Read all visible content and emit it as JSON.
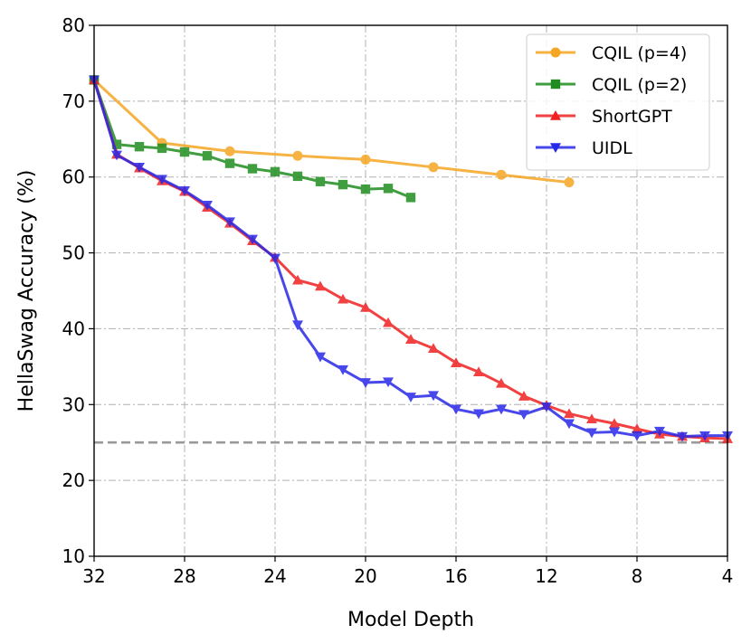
{
  "chart_data": {
    "type": "line",
    "xlabel": "Model Depth",
    "ylabel": "HellaSwag Accuracy (%)",
    "xlim": [
      32,
      4
    ],
    "ylim": [
      10,
      80
    ],
    "xticks": [
      32,
      28,
      24,
      20,
      16,
      12,
      8,
      4
    ],
    "yticks": [
      10,
      20,
      30,
      40,
      50,
      60,
      70,
      80
    ],
    "grid": true,
    "legend_position": "top-right",
    "baseline": {
      "value": 25,
      "color": "#999999",
      "style": "dashed"
    },
    "series": [
      {
        "name": "CQIL (p=4)",
        "color": "#f5a623",
        "marker": "circle",
        "points": [
          [
            32,
            72.8
          ],
          [
            29,
            64.5
          ],
          [
            26,
            63.4
          ],
          [
            23,
            62.8
          ],
          [
            20,
            62.3
          ],
          [
            17,
            61.3
          ],
          [
            14,
            60.3
          ],
          [
            11,
            59.3
          ]
        ]
      },
      {
        "name": "CQIL (p=2)",
        "color": "#1f8c1f",
        "marker": "square",
        "points": [
          [
            32,
            72.8
          ],
          [
            31,
            64.3
          ],
          [
            30,
            64.0
          ],
          [
            29,
            63.8
          ],
          [
            28,
            63.3
          ],
          [
            27,
            62.8
          ],
          [
            26,
            61.8
          ],
          [
            25,
            61.1
          ],
          [
            24,
            60.7
          ],
          [
            23,
            60.1
          ],
          [
            22,
            59.4
          ],
          [
            21,
            59.0
          ],
          [
            20,
            58.4
          ],
          [
            19,
            58.5
          ],
          [
            18,
            57.3
          ]
        ]
      },
      {
        "name": "ShortGPT",
        "color": "#f02020",
        "marker": "triangle-up",
        "points": [
          [
            32,
            72.8
          ],
          [
            31,
            63.0
          ],
          [
            30,
            61.2
          ],
          [
            29,
            59.5
          ],
          [
            28,
            58.1
          ],
          [
            27,
            56.0
          ],
          [
            26,
            53.9
          ],
          [
            25,
            51.6
          ],
          [
            24,
            49.4
          ],
          [
            23,
            46.4
          ],
          [
            22,
            45.6
          ],
          [
            21,
            43.9
          ],
          [
            20,
            42.8
          ],
          [
            19,
            40.8
          ],
          [
            18,
            38.6
          ],
          [
            17,
            37.4
          ],
          [
            16,
            35.5
          ],
          [
            15,
            34.3
          ],
          [
            14,
            32.8
          ],
          [
            13,
            31.1
          ],
          [
            12,
            29.9
          ],
          [
            11,
            28.8
          ],
          [
            10,
            28.1
          ],
          [
            9,
            27.5
          ],
          [
            8,
            26.8
          ],
          [
            7,
            26.1
          ],
          [
            6,
            25.8
          ],
          [
            5,
            25.6
          ],
          [
            4,
            25.5
          ]
        ]
      },
      {
        "name": "UIDL",
        "color": "#2828e8",
        "marker": "triangle-down",
        "points": [
          [
            32,
            72.8
          ],
          [
            31,
            62.9
          ],
          [
            30,
            61.3
          ],
          [
            29,
            59.7
          ],
          [
            28,
            58.2
          ],
          [
            27,
            56.3
          ],
          [
            26,
            54.1
          ],
          [
            25,
            51.8
          ],
          [
            24,
            49.3
          ],
          [
            23,
            40.5
          ],
          [
            22,
            36.3
          ],
          [
            21,
            34.6
          ],
          [
            20,
            32.9
          ],
          [
            19,
            33.0
          ],
          [
            18,
            31.0
          ],
          [
            17,
            31.2
          ],
          [
            16,
            29.4
          ],
          [
            15,
            28.8
          ],
          [
            14,
            29.4
          ],
          [
            13,
            28.7
          ],
          [
            12,
            29.7
          ],
          [
            11,
            27.5
          ],
          [
            10,
            26.3
          ],
          [
            9,
            26.4
          ],
          [
            8,
            25.9
          ],
          [
            7,
            26.5
          ],
          [
            6,
            25.8
          ],
          [
            5,
            25.9
          ],
          [
            4,
            25.9
          ]
        ]
      }
    ]
  }
}
